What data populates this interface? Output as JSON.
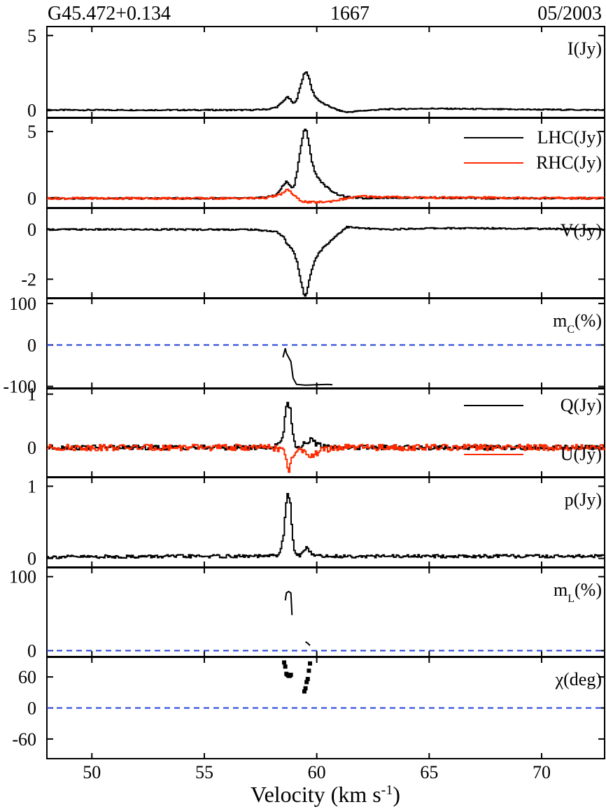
{
  "header": {
    "source": "G45.472+0.134",
    "frequency": "1667",
    "epoch": "05/2003"
  },
  "chart_data": [
    {
      "type": "line",
      "id": "I",
      "xlim": [
        48,
        72.8
      ],
      "ylim": [
        -0.5,
        5.6
      ],
      "yticks": [
        0,
        5
      ],
      "panel_label": "I(Jy)",
      "series": [
        {
          "color": "#000000",
          "x": [
            48,
            55,
            57,
            57.8,
            58.2,
            58.5,
            58.65,
            58.8,
            58.95,
            59.1,
            59.25,
            59.4,
            59.5,
            59.6,
            59.75,
            59.9,
            60.1,
            60.3,
            60.6,
            60.9,
            61.3,
            62,
            63,
            65,
            68,
            72.8
          ],
          "y": [
            0,
            0,
            0,
            0.05,
            0.2,
            0.6,
            0.9,
            0.7,
            0.4,
            0.8,
            1.6,
            2.4,
            2.6,
            2.3,
            1.4,
            0.9,
            0.6,
            0.4,
            0.2,
            0,
            -0.15,
            -0.05,
            0.05,
            0.1,
            0.05,
            0
          ]
        }
      ]
    },
    {
      "type": "line",
      "id": "LHC_RHC",
      "xlim": [
        48,
        72.8
      ],
      "ylim": [
        -0.7,
        6.0
      ],
      "yticks": [
        0,
        5
      ],
      "legend": [
        "LHC(Jy)",
        "RHC(Jy)"
      ],
      "series": [
        {
          "name": "LHC(Jy)",
          "color": "#000000",
          "x": [
            48,
            55,
            57,
            57.8,
            58.2,
            58.5,
            58.65,
            58.8,
            58.95,
            59.1,
            59.25,
            59.4,
            59.5,
            59.6,
            59.75,
            59.9,
            60.1,
            60.3,
            60.6,
            60.9,
            61.3,
            62,
            63,
            65,
            68,
            72.8
          ],
          "y": [
            0,
            0,
            0,
            0.1,
            0.3,
            1.0,
            1.3,
            0.9,
            0.8,
            2.0,
            3.7,
            5.0,
            5.2,
            4.4,
            2.8,
            1.9,
            1.4,
            1.0,
            0.6,
            0.3,
            0.1,
            0,
            0.05,
            0.05,
            0,
            0
          ]
        },
        {
          "name": "RHC(Jy)",
          "color": "#ff2a00",
          "x": [
            48,
            55,
            57,
            57.8,
            58.2,
            58.5,
            58.7,
            58.9,
            59.1,
            59.3,
            59.6,
            60,
            60.5,
            61,
            61.5,
            62,
            63,
            65,
            68,
            72.8
          ],
          "y": [
            0,
            0,
            0,
            0.05,
            0.2,
            0.4,
            0.7,
            0.3,
            0,
            -0.2,
            -0.3,
            -0.3,
            -0.25,
            -0.1,
            0.05,
            0.15,
            0.1,
            0.05,
            0.05,
            0
          ]
        }
      ]
    },
    {
      "type": "line",
      "id": "V",
      "xlim": [
        48,
        72.8
      ],
      "ylim": [
        -2.75,
        0.85
      ],
      "yticks": [
        0,
        -2
      ],
      "panel_label": "V(Jy)",
      "series": [
        {
          "color": "#000000",
          "x": [
            48,
            55,
            57,
            57.8,
            58.2,
            58.5,
            58.65,
            58.8,
            58.95,
            59.1,
            59.25,
            59.4,
            59.5,
            59.6,
            59.75,
            59.9,
            60.1,
            60.3,
            60.6,
            60.9,
            61.3,
            62,
            63,
            65,
            68,
            72.8
          ],
          "y": [
            0,
            0,
            0,
            -0.05,
            -0.1,
            -0.3,
            -0.6,
            -0.7,
            -0.9,
            -1.3,
            -2.0,
            -2.6,
            -2.7,
            -2.2,
            -1.6,
            -1.2,
            -0.9,
            -0.7,
            -0.45,
            -0.2,
            0.1,
            0.05,
            0,
            0.05,
            0.05,
            0
          ]
        }
      ]
    },
    {
      "type": "line",
      "id": "mc",
      "xlim": [
        48,
        72.8
      ],
      "ylim": [
        -104,
        112
      ],
      "yticks": [
        100,
        0,
        -100
      ],
      "panel_label": "mC(%)",
      "series": [
        {
          "color": "#000000",
          "x": [
            58.5,
            58.6,
            58.65,
            58.75,
            58.85,
            58.95,
            59.1,
            59.5,
            60,
            60.5,
            60.7
          ],
          "y": [
            -30,
            -8,
            -20,
            -30,
            -40,
            -80,
            -95,
            -97,
            -96,
            -95,
            -96
          ]
        }
      ],
      "reference_line": 0
    },
    {
      "type": "line",
      "id": "Q_U",
      "xlim": [
        48,
        72.8
      ],
      "ylim": [
        -0.55,
        1.1
      ],
      "yticks": [
        1,
        0
      ],
      "legend": [
        "Q(Jy)",
        "U(Jy)"
      ],
      "series": [
        {
          "name": "Q(Jy)",
          "color": "#000000",
          "x": [
            48,
            55,
            57,
            57.8,
            58.3,
            58.5,
            58.6,
            58.7,
            58.8,
            58.9,
            59.0,
            59.2,
            59.5,
            59.7,
            60,
            61,
            63,
            66,
            72.8
          ],
          "y": [
            0,
            0,
            0,
            0,
            0.05,
            0.3,
            0.75,
            0.85,
            0.7,
            0.3,
            0.05,
            0,
            0.1,
            0.15,
            0.05,
            0,
            0,
            0,
            0
          ]
        },
        {
          "name": "U(Jy)",
          "color": "#ff2a00",
          "x": [
            48,
            55,
            57,
            58,
            58.5,
            58.6,
            58.7,
            58.8,
            58.9,
            59.1,
            59.5,
            59.8,
            60.2,
            61,
            63,
            66,
            72.8
          ],
          "y": [
            0,
            0,
            0,
            0,
            -0.05,
            -0.2,
            -0.45,
            -0.35,
            -0.15,
            -0.05,
            -0.1,
            -0.15,
            -0.05,
            0,
            0,
            0,
            0
          ]
        }
      ]
    },
    {
      "type": "line",
      "id": "p",
      "xlim": [
        48,
        72.8
      ],
      "ylim": [
        -0.12,
        1.12
      ],
      "yticks": [
        1,
        0
      ],
      "panel_label": "p(Jy)",
      "series": [
        {
          "color": "#000000",
          "x": [
            48,
            55,
            57,
            57.8,
            58.3,
            58.5,
            58.6,
            58.7,
            58.8,
            58.9,
            59.0,
            59.2,
            59.4,
            59.5,
            59.6,
            59.7,
            59.9,
            60.2,
            61,
            63,
            66,
            72.8
          ],
          "y": [
            0.02,
            0.03,
            0.03,
            0.03,
            0.05,
            0.3,
            0.75,
            0.92,
            0.75,
            0.3,
            0.08,
            0.03,
            0.1,
            0.15,
            0.12,
            0.08,
            0.05,
            0.03,
            0.03,
            0.03,
            0.03,
            0.03
          ]
        }
      ]
    },
    {
      "type": "line",
      "id": "mL",
      "xlim": [
        48,
        72.8
      ],
      "ylim": [
        -8,
        112
      ],
      "yticks": [
        100,
        0
      ],
      "panel_label": "mL(%)",
      "series": [
        {
          "color": "#000000",
          "x": [
            58.6,
            58.65,
            58.75,
            58.85,
            58.9
          ],
          "y": [
            68,
            78,
            80,
            78,
            48
          ]
        },
        {
          "color": "#000000",
          "x": [
            59.5,
            59.6,
            59.7
          ],
          "y": [
            12,
            10,
            7
          ]
        }
      ],
      "reference_line": 0
    },
    {
      "type": "scatter",
      "id": "chi",
      "xlim": [
        48,
        72.8
      ],
      "ylim": [
        -98,
        98
      ],
      "yticks": [
        60,
        0,
        -60
      ],
      "panel_label": "χ(deg)",
      "series": [
        {
          "color": "#000000",
          "x": [
            58.55,
            58.6,
            58.65,
            58.7,
            58.75,
            58.8,
            58.85,
            59.45,
            59.5,
            59.55,
            59.6,
            59.65,
            59.7
          ],
          "y": [
            88,
            80,
            66,
            64,
            62,
            62,
            64,
            32,
            38,
            50,
            56,
            72,
            86
          ]
        }
      ],
      "reference_line": 0
    }
  ],
  "xaxis": {
    "label": "Velocity (km s",
    "label_sup": "-1",
    "label_close": ")",
    "ticks": [
      50,
      55,
      60,
      65,
      70
    ]
  },
  "colors": {
    "primary": "#000000",
    "secondary": "#ff2a00",
    "reference": "#1f3fd6"
  }
}
